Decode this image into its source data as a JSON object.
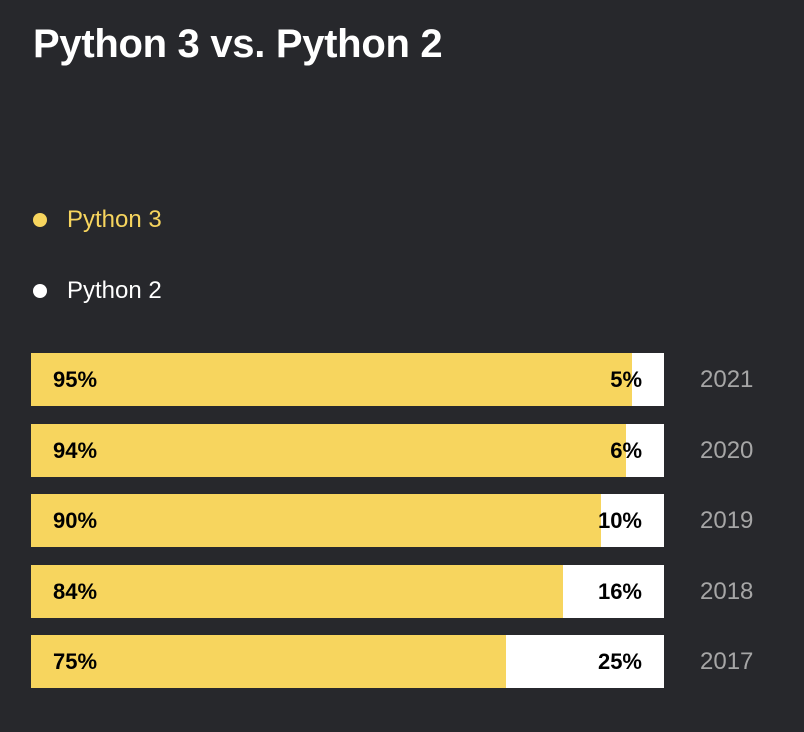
{
  "colors": {
    "background": "#27282c",
    "python3": "#f7d55e",
    "python2": "#ffffff",
    "title": "#ffffff",
    "year_label": "#a6a6a6"
  },
  "chart_data": {
    "type": "bar",
    "orientation": "horizontal",
    "stacked": true,
    "normalized": "percent",
    "title": "Python 3 vs. Python 2",
    "legend_position": "top-left",
    "categories": [
      "2021",
      "2020",
      "2019",
      "2018",
      "2017"
    ],
    "series": [
      {
        "name": "Python 3",
        "color": "#f7d55e",
        "values": [
          95,
          94,
          90,
          84,
          75
        ],
        "labels": [
          "95%",
          "94%",
          "90%",
          "84%",
          "75%"
        ]
      },
      {
        "name": "Python 2",
        "color": "#ffffff",
        "values": [
          5,
          6,
          10,
          16,
          25
        ],
        "labels": [
          "5%",
          "6%",
          "10%",
          "16%",
          "25%"
        ]
      }
    ],
    "xlim": [
      0,
      100
    ],
    "grid": false
  }
}
